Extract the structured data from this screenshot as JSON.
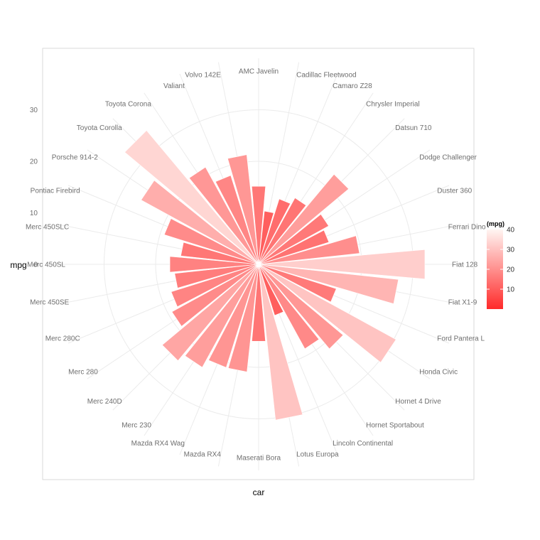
{
  "chart_data": {
    "type": "bar",
    "coord": "polar",
    "xlabel": "car",
    "ylabel": "mpg",
    "ylim": [
      0,
      40
    ],
    "y_ticks": [
      0,
      10,
      20,
      30
    ],
    "grid": true,
    "categories": [
      "AMC Javelin",
      "Cadillac Fleetwood",
      "Camaro Z28",
      "Chrysler Imperial",
      "Datsun 710",
      "Dodge Challenger",
      "Duster 360",
      "Ferrari Dino",
      "Fiat 128",
      "Fiat X1-9",
      "Ford Pantera L",
      "Honda Civic",
      "Hornet 4 Drive",
      "Hornet Sportabout",
      "Lincoln Continental",
      "Lotus Europa",
      "Maserati Bora",
      "Mazda RX4",
      "Mazda RX4 Wag",
      "Merc 230",
      "Merc 240D",
      "Merc 280",
      "Merc 280C",
      "Merc 450SE",
      "Merc 450SL",
      "Merc 450SLC",
      "Pontiac Firebird",
      "Porsche 914-2",
      "Toyota Corolla",
      "Toyota Corona",
      "Valiant",
      "Volvo 142E"
    ],
    "values": [
      15.2,
      10.4,
      13.3,
      14.7,
      22.8,
      15.5,
      14.3,
      19.7,
      32.4,
      27.3,
      15.8,
      30.4,
      21.4,
      18.7,
      10.4,
      30.4,
      15.0,
      21.0,
      21.0,
      22.8,
      24.4,
      19.2,
      17.8,
      16.4,
      17.3,
      15.2,
      19.2,
      26.0,
      33.9,
      21.5,
      18.1,
      21.4
    ],
    "legend": {
      "title": "(mpg)",
      "position": "right",
      "ticks": [
        10,
        20,
        30,
        40
      ],
      "range": [
        0,
        40
      ],
      "colors": [
        "#ff2a2a",
        "#fff5f2"
      ]
    }
  },
  "colors": {
    "panel_border": "#d9d9d9",
    "grid": "#ebebeb",
    "bar_outline": "#ffffff"
  }
}
